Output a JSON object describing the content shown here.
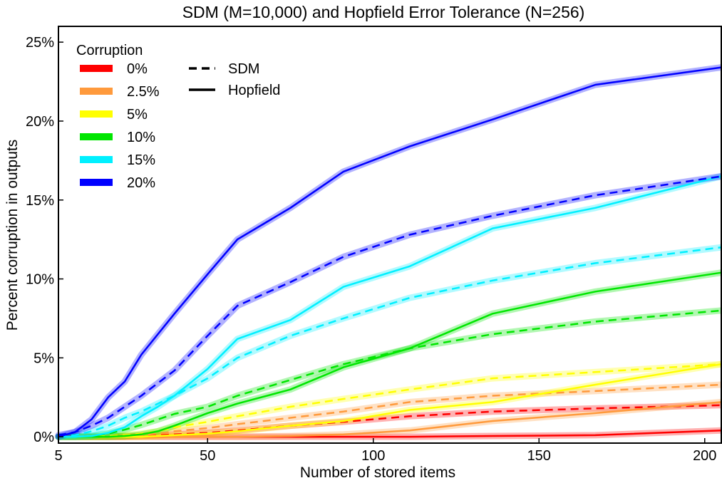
{
  "chart_data": {
    "type": "line",
    "title": "SDM (M=10,000) and Hopfield Error Tolerance (N=256)",
    "xlabel": "Number of stored items",
    "ylabel": "Percent corruption in outputs",
    "xlim": [
      5,
      205
    ],
    "ylim": [
      -0.4,
      26
    ],
    "xticks": [
      5,
      50,
      100,
      150,
      200
    ],
    "yticks": [
      0,
      5,
      10,
      15,
      20,
      25
    ],
    "ytick_labels": [
      "0%",
      "5%",
      "10%",
      "15%",
      "20%",
      "25%"
    ],
    "grid": false,
    "legend": {
      "title": "Corruption",
      "placement": "top-left",
      "entries": [
        {
          "label": "0%",
          "color": "#ff0000"
        },
        {
          "label": "2.5%",
          "color": "#ff9a3c"
        },
        {
          "label": "5%",
          "color": "#ffff00"
        },
        {
          "label": "10%",
          "color": "#00e600"
        },
        {
          "label": "15%",
          "color": "#00f0ff"
        },
        {
          "label": "20%",
          "color": "#0000ff"
        }
      ],
      "style_entries": [
        {
          "label": "SDM",
          "style": "dashed"
        },
        {
          "label": "Hopfield",
          "style": "solid"
        }
      ]
    },
    "x": [
      5,
      10,
      15,
      20,
      25,
      30,
      35,
      40,
      50,
      59,
      75,
      91,
      111,
      136,
      167,
      205
    ],
    "series": [
      {
        "corruption": "0%",
        "model": "Hopfield",
        "color": "#ff0000",
        "dash": false,
        "values": [
          0,
          0,
          0,
          0,
          0,
          0,
          0,
          0,
          0,
          0,
          0,
          0,
          0,
          0.05,
          0.1,
          0.4
        ]
      },
      {
        "corruption": "0%",
        "model": "SDM",
        "color": "#ff0000",
        "dash": true,
        "values": [
          0,
          0,
          0,
          0,
          0,
          0.05,
          0.1,
          0.15,
          0.25,
          0.4,
          0.7,
          0.95,
          1.3,
          1.6,
          1.8,
          2.0
        ]
      },
      {
        "corruption": "2.5%",
        "model": "Hopfield",
        "color": "#ff9a3c",
        "dash": false,
        "values": [
          0,
          0,
          0,
          0,
          0,
          0,
          0,
          0,
          0,
          0,
          0.05,
          0.15,
          0.4,
          1.0,
          1.5,
          2.2
        ]
      },
      {
        "corruption": "2.5%",
        "model": "SDM",
        "color": "#ff9a3c",
        "dash": true,
        "values": [
          0,
          0,
          0,
          0,
          0,
          0.1,
          0.2,
          0.35,
          0.55,
          0.8,
          1.2,
          1.6,
          2.2,
          2.6,
          2.9,
          3.3
        ]
      },
      {
        "corruption": "5%",
        "model": "Hopfield",
        "color": "#ffff00",
        "dash": false,
        "values": [
          0,
          0,
          0,
          0,
          0,
          0,
          0.05,
          0.1,
          0.2,
          0.35,
          0.7,
          1.0,
          1.7,
          2.2,
          3.3,
          4.6
        ]
      },
      {
        "corruption": "5%",
        "model": "SDM",
        "color": "#ffff00",
        "dash": true,
        "values": [
          0,
          0,
          0,
          0.05,
          0.1,
          0.2,
          0.35,
          0.6,
          0.95,
          1.3,
          1.9,
          2.4,
          3.0,
          3.7,
          4.1,
          4.6
        ]
      },
      {
        "corruption": "10%",
        "model": "Hopfield",
        "color": "#00e600",
        "dash": false,
        "values": [
          0,
          0,
          0,
          0,
          0.05,
          0.15,
          0.35,
          0.7,
          1.5,
          2.1,
          3.0,
          4.4,
          5.6,
          7.8,
          9.2,
          10.4
        ]
      },
      {
        "corruption": "10%",
        "model": "SDM",
        "color": "#00e600",
        "dash": true,
        "values": [
          0,
          0,
          0.05,
          0.2,
          0.45,
          0.75,
          1.1,
          1.45,
          1.9,
          2.6,
          3.6,
          4.6,
          5.6,
          6.5,
          7.3,
          8.0
        ]
      },
      {
        "corruption": "15%",
        "model": "Hopfield",
        "color": "#00f0ff",
        "dash": false,
        "values": [
          0,
          0,
          0.05,
          0.25,
          0.6,
          1.3,
          1.9,
          2.6,
          4.3,
          6.2,
          7.4,
          9.5,
          10.8,
          13.2,
          14.5,
          16.5
        ]
      },
      {
        "corruption": "15%",
        "model": "SDM",
        "color": "#00f0ff",
        "dash": true,
        "values": [
          0,
          0.1,
          0.35,
          0.7,
          1.2,
          1.6,
          2.1,
          2.6,
          3.7,
          5.0,
          6.4,
          7.5,
          8.8,
          9.9,
          11.0,
          12.0
        ]
      },
      {
        "corruption": "20%",
        "model": "Hopfield",
        "color": "#0000ff",
        "dash": false,
        "values": [
          0,
          0.3,
          1.1,
          2.5,
          3.5,
          5.2,
          6.5,
          7.8,
          10.3,
          12.5,
          14.5,
          16.8,
          18.4,
          20.1,
          22.3,
          23.4
        ]
      },
      {
        "corruption": "20%",
        "model": "SDM",
        "color": "#0000ff",
        "dash": true,
        "values": [
          0.1,
          0.3,
          0.7,
          1.2,
          1.9,
          2.6,
          3.4,
          4.2,
          6.4,
          8.3,
          9.8,
          11.4,
          12.8,
          14.0,
          15.3,
          16.5
        ]
      }
    ]
  }
}
